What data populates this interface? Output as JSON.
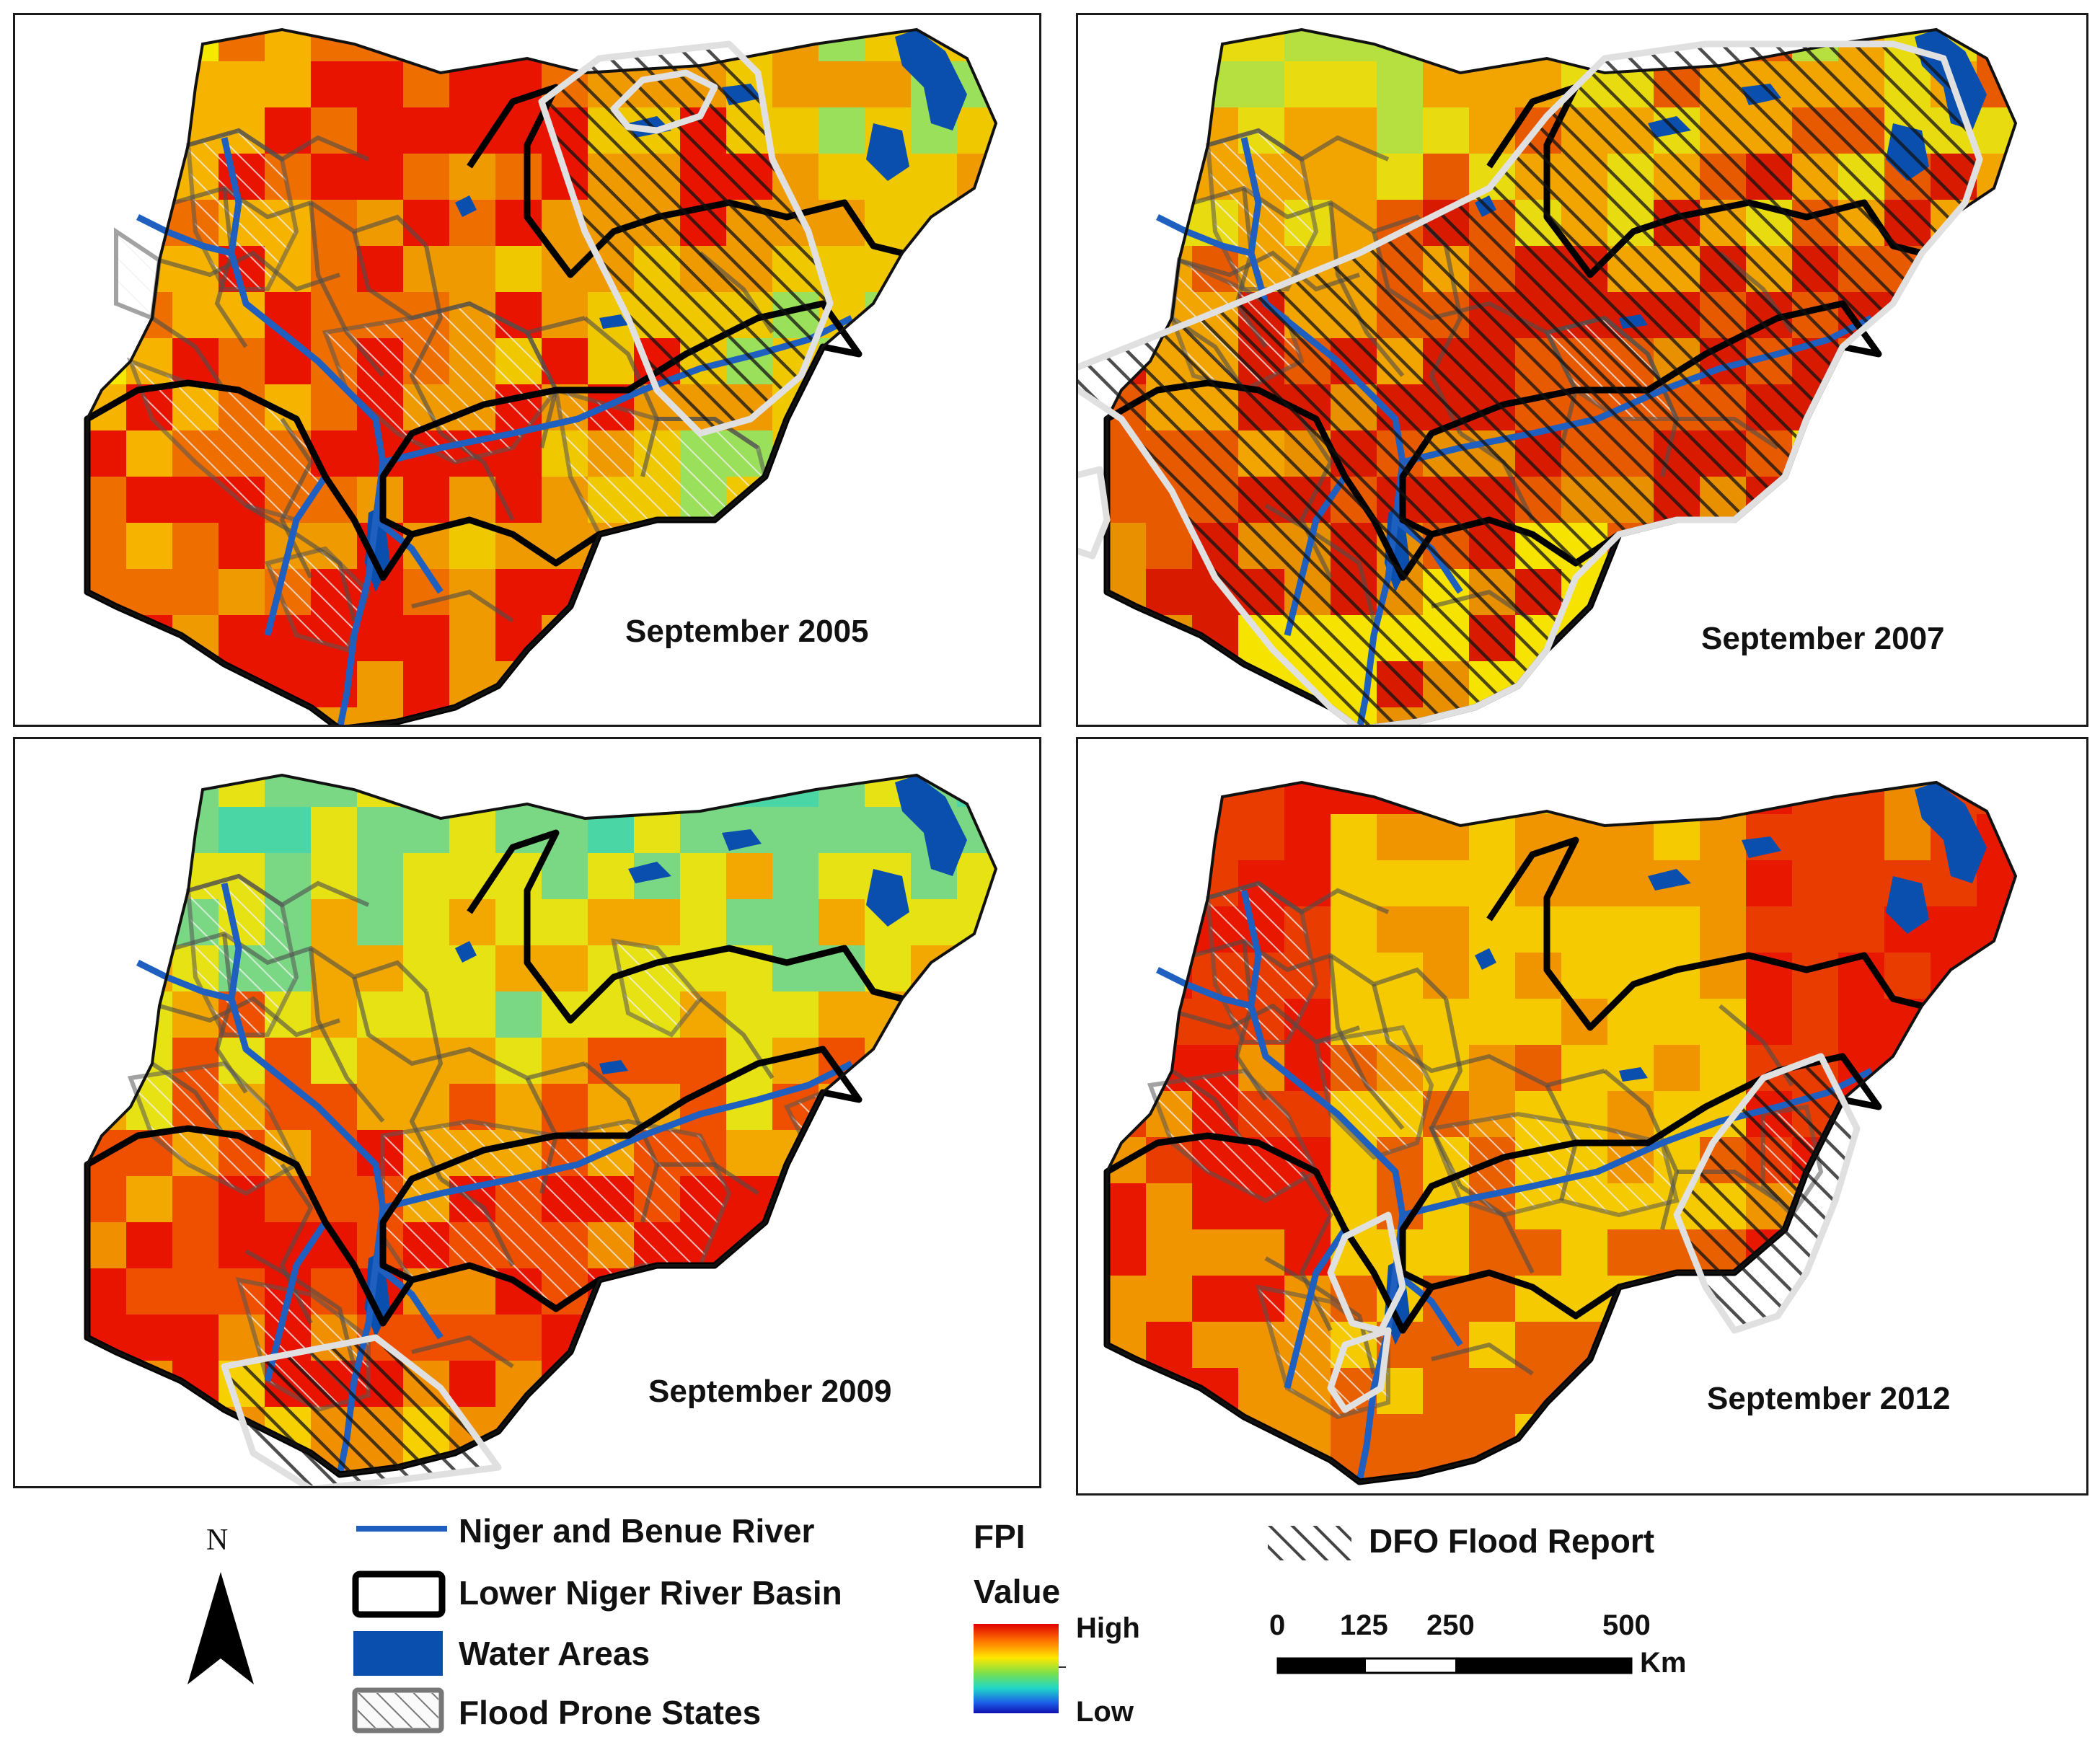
{
  "panels": [
    {
      "label": "September 2005",
      "fpi": [
        "#f6e900",
        "#f6b400",
        "#ee6e00",
        "#e81400",
        "#ee9a00",
        "#f0c800",
        "#9be05a",
        "#3ad2a0"
      ]
    },
    {
      "label": "September 2007",
      "fpi": [
        "#b6df40",
        "#e8dc10",
        "#f2a400",
        "#e85a00",
        "#d81a00",
        "#e89000",
        "#f6e400",
        "#c6e030"
      ]
    },
    {
      "label": "September 2009",
      "fpi": [
        "#4bd6a6",
        "#7ad884",
        "#e6e214",
        "#f2a800",
        "#ee5000",
        "#e81400",
        "#f09000",
        "#f6d000"
      ]
    },
    {
      "label": "September 2012",
      "fpi": [
        "#d6e020",
        "#f0c400",
        "#ee8a00",
        "#e83c00",
        "#e81800",
        "#f09400",
        "#f6ca00",
        "#e86000"
      ]
    }
  ],
  "legend": {
    "north": "N",
    "river": "Niger and Benue River",
    "basin": "Lower Niger River Basin",
    "water": "Water Areas",
    "flood_prone": "Flood Prone States",
    "fpi_title": "FPI",
    "fpi_value": "Value",
    "fpi_high": "High",
    "fpi_low": "Low",
    "dfo": "DFO Flood Report",
    "scale_ticks": [
      "0",
      "125",
      "250",
      "500"
    ],
    "scale_unit": "Km"
  },
  "colors": {
    "river": "#1f5fbf",
    "water": "#0a4fae",
    "basin": "#000000",
    "dfo_outline": "#e0e0e0"
  }
}
